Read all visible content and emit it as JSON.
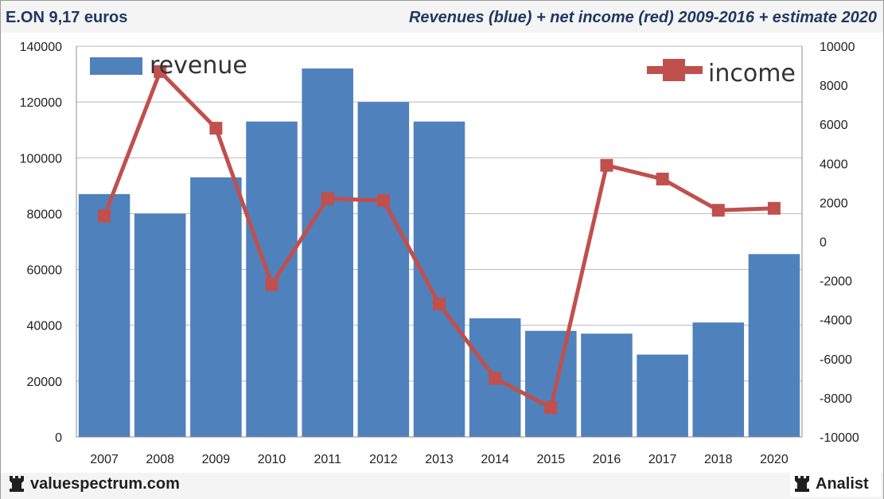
{
  "header": {
    "left_title": "E.ON 9,17 euros",
    "right_title": "Revenues (blue) + net income (red) 2009-2016 + estimate 2020"
  },
  "footer": {
    "site": "valuespectrum.com",
    "brand": "Analist",
    "logo_icon": "rook-icon"
  },
  "chart_data": {
    "type": "bar",
    "categories": [
      "2007",
      "2008",
      "2009",
      "2010",
      "2011",
      "2012",
      "2013",
      "2014",
      "2015",
      "2016",
      "2017",
      "2018",
      "2020"
    ],
    "series": [
      {
        "name": "revenue",
        "type": "bar",
        "axis": "left",
        "color": "#4f81bd",
        "values": [
          87000,
          80000,
          93000,
          113000,
          132000,
          120000,
          113000,
          42500,
          38000,
          37000,
          29500,
          41000,
          65500
        ]
      },
      {
        "name": "income",
        "type": "line",
        "axis": "right",
        "color": "#c0504d",
        "values": [
          1300,
          8700,
          5800,
          -2200,
          2200,
          2100,
          -3200,
          -7000,
          -8500,
          3900,
          3200,
          1600,
          1700
        ]
      }
    ],
    "ylim_left": [
      0,
      140000
    ],
    "ylim_right": [
      -10000,
      10000
    ],
    "yticks_left": [
      "0",
      "20000",
      "40000",
      "60000",
      "80000",
      "100000",
      "120000",
      "140000"
    ],
    "yticks_right": [
      "-10000",
      "-8000",
      "-6000",
      "-4000",
      "-2000",
      "0",
      "2000",
      "4000",
      "6000",
      "8000",
      "10000"
    ],
    "grid": true,
    "legend": [
      {
        "label": "revenue",
        "placement": "top-left"
      },
      {
        "label": "income",
        "placement": "top-right"
      }
    ]
  }
}
